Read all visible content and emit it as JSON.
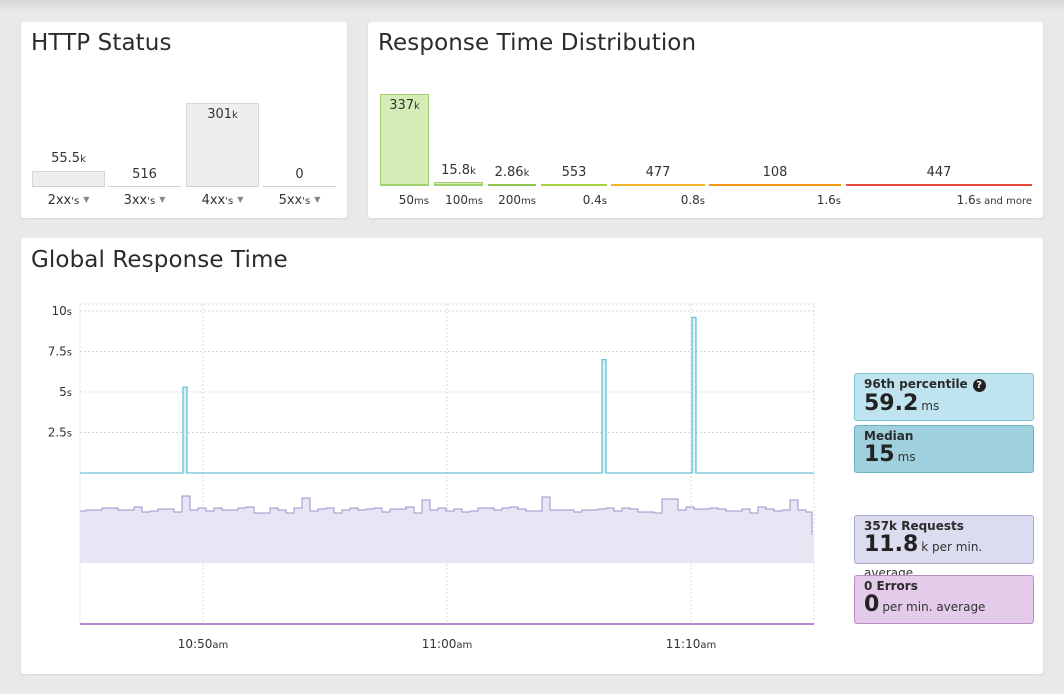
{
  "http_status": {
    "title": "HTTP Status",
    "items": [
      {
        "value": "55.5",
        "suffix": "k",
        "label": "2xx",
        "label_suffix": "'s"
      },
      {
        "value": "516",
        "suffix": "",
        "label": "3xx",
        "label_suffix": "'s"
      },
      {
        "value": "301",
        "suffix": "k",
        "label": "4xx",
        "label_suffix": "'s"
      },
      {
        "value": "0",
        "suffix": "",
        "label": "5xx",
        "label_suffix": "'s"
      }
    ]
  },
  "response_time_distribution": {
    "title": "Response Time Distribution",
    "buckets": [
      {
        "value": "337",
        "suffix": "k",
        "label": "50",
        "label_suffix": "ms",
        "color": "#9fd06f"
      },
      {
        "value": "15.8",
        "suffix": "k",
        "label": "100",
        "label_suffix": "ms",
        "color": "#9fd06f"
      },
      {
        "value": "2.86",
        "suffix": "k",
        "label": "200",
        "label_suffix": "ms",
        "color": "#8cc84b"
      },
      {
        "value": "553",
        "suffix": "",
        "label": "0.4",
        "label_suffix": "s",
        "color": "#a8cf3c"
      },
      {
        "value": "477",
        "suffix": "",
        "label": "0.8",
        "label_suffix": "s",
        "color": "#f0b429"
      },
      {
        "value": "108",
        "suffix": "",
        "label": "1.6",
        "label_suffix": "s",
        "color": "#f39c12"
      },
      {
        "value": "447",
        "suffix": "",
        "label": "1.6",
        "label_suffix": "s and more",
        "color": "#e74c3c"
      }
    ]
  },
  "global_response_time": {
    "title": "Global Response Time",
    "y_ticks": [
      {
        "value": "10",
        "unit": "s"
      },
      {
        "value": "7.5",
        "unit": "s"
      },
      {
        "value": "5",
        "unit": "s"
      },
      {
        "value": "2.5",
        "unit": "s"
      }
    ],
    "x_ticks": [
      {
        "value": "10:50",
        "unit": "am"
      },
      {
        "value": "11:00",
        "unit": "am"
      },
      {
        "value": "11:10",
        "unit": "am"
      }
    ],
    "stats": {
      "p96": {
        "title": "96th percentile",
        "value": "59.2",
        "unit": "ms",
        "color": "#bfe3ef",
        "border": "#7fc3d9"
      },
      "median": {
        "title": "Median",
        "value": "15",
        "unit": "ms",
        "color": "#9fd0dd",
        "border": "#6bb4c8"
      },
      "requests": {
        "title": "357k Requests",
        "value": "11.8",
        "unit": "k per min. average",
        "color": "#dcdcf0",
        "border": "#a8a8cf"
      },
      "errors": {
        "title": "0 Errors",
        "value": "0",
        "unit": "per min. average",
        "color": "#e3cbe9",
        "border": "#b98cc6"
      }
    },
    "colors": {
      "response_line": "#6cc0d8",
      "requests_fill": "#e6e6f5",
      "requests_line": "#9b93c9",
      "errors_line": "#b68ad0"
    }
  },
  "chart_data": [
    {
      "type": "bar",
      "title": "HTTP Status",
      "categories": [
        "2xx's",
        "3xx's",
        "4xx's",
        "5xx's"
      ],
      "values": [
        55500,
        516,
        301000,
        0
      ]
    },
    {
      "type": "bar",
      "title": "Response Time Distribution",
      "categories": [
        "50ms",
        "100ms",
        "200ms",
        "0.4s",
        "0.8s",
        "1.6s",
        "1.6s and more"
      ],
      "values": [
        337000,
        15800,
        2860,
        553,
        477,
        108,
        447
      ]
    },
    {
      "type": "line",
      "title": "Global Response Time",
      "ylabel": "",
      "ylim": [
        0,
        10
      ],
      "series": [
        {
          "name": "",
          "x": [
            "10:48",
            "10:49",
            "10:50",
            "11:04",
            "11:09",
            "11:10",
            "11:12"
          ],
          "values": [
            0.05,
            5.3,
            0.05,
            6.8,
            0.05,
            9.3,
            0.05
          ]
        }
      ]
    }
  ]
}
